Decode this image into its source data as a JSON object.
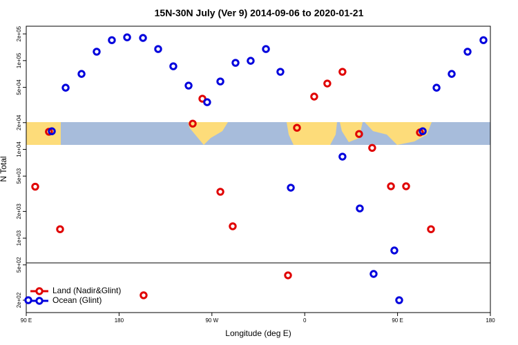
{
  "chart_data": {
    "type": "scatter",
    "title": "15N-30N July (Ver 9)   2014-09-06 to 2020-01-21",
    "x_label": "Longitude (deg E)",
    "y_label": "N Total",
    "log_y": true,
    "xlim": [
      90,
      540
    ],
    "xticks": [
      {
        "value": 90,
        "label": "90 E"
      },
      {
        "value": 180,
        "label": "180"
      },
      {
        "value": 270,
        "label": "90 W"
      },
      {
        "value": 360,
        "label": "0"
      },
      {
        "value": 450,
        "label": "90 E"
      },
      {
        "value": 540,
        "label": "180"
      }
    ],
    "ylim": [
      145,
      244000
    ],
    "yticks": [
      {
        "value": 200,
        "label": "2e+02"
      },
      {
        "value": 500,
        "label": "5e+02"
      },
      {
        "value": 1000,
        "label": "1e+03"
      },
      {
        "value": 2000,
        "label": "2e+03"
      },
      {
        "value": 5000,
        "label": "5e+03"
      },
      {
        "value": 10000,
        "label": "1e+04"
      },
      {
        "value": 20000,
        "label": "2e+04"
      },
      {
        "value": 50000,
        "label": "5e+04"
      },
      {
        "value": 100000,
        "label": "1e+05"
      },
      {
        "value": 200000,
        "label": "2e+05"
      }
    ],
    "legend_position": "bottom-left",
    "series": [
      {
        "name": "Land (Nadir&Glint)",
        "color": "#e00000",
        "x": [
          98.7,
          112,
          122.8,
          203.8,
          251.4,
          260.8,
          278.2,
          290.2,
          343.8,
          352.5,
          369.2,
          381.9,
          396.6,
          412.7,
          425.4,
          443.6,
          458.3,
          471.7,
          482.4
        ],
        "values": [
          3800,
          15800,
          1260,
          227,
          19500,
          37200,
          3330,
          1360,
          381,
          17500,
          39300,
          55200,
          74800,
          14900,
          10400,
          3840,
          3840,
          15500,
          1260
        ]
      },
      {
        "name": "Ocean (Glint)",
        "color": "#0000dd",
        "x": [
          92,
          114.8,
          128.2,
          143.6,
          158.3,
          173,
          187.8,
          203.2,
          217.9,
          232.6,
          247.4,
          265.4,
          278.2,
          292.9,
          307.6,
          322.4,
          336.4,
          346.5,
          396.6,
          413.4,
          426.8,
          446.9,
          451.6,
          474.4,
          487.8,
          502.5,
          517.9,
          533.3
        ],
        "values": [
          200,
          16000,
          49500,
          70800,
          126000,
          170000,
          183000,
          180000,
          135000,
          86300,
          52300,
          34000,
          58200,
          94400,
          99500,
          135000,
          74800,
          3700,
          8280,
          2160,
          395,
          726,
          200,
          16000,
          49500,
          70800,
          126000,
          170000
        ]
      }
    ]
  }
}
